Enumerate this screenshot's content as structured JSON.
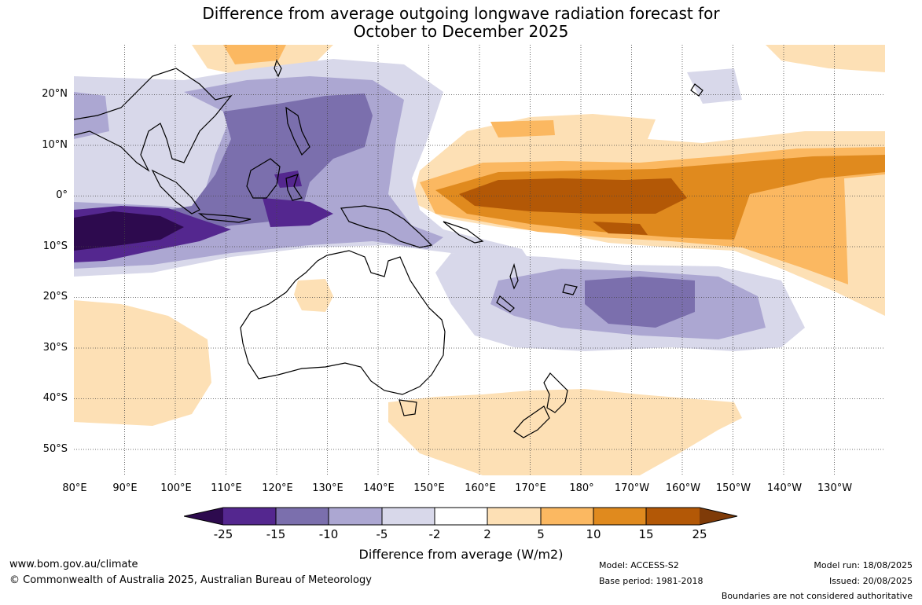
{
  "title": {
    "line1": "Difference from average outgoing longwave radiation forecast for",
    "line2": "October to December 2025"
  },
  "map": {
    "lat_labels": [
      "20°N",
      "10°N",
      "0°",
      "10°S",
      "20°S",
      "30°S",
      "40°S",
      "50°S"
    ],
    "lon_labels": [
      "80°E",
      "90°E",
      "100°E",
      "110°E",
      "120°E",
      "130°E",
      "140°E",
      "150°E",
      "160°E",
      "170°E",
      "180°",
      "170°W",
      "160°W",
      "150°W",
      "140°W",
      "130°W"
    ],
    "grid": true
  },
  "colorbar": {
    "tick_labels": [
      "-25",
      "-15",
      "-10",
      "-5",
      "-2",
      "2",
      "5",
      "10",
      "15",
      "25"
    ],
    "colors": [
      "#2d0a4e",
      "#54278f",
      "#7b6fad",
      "#aca7d2",
      "#d8d8ea",
      "#ffffff",
      "#fde0b5",
      "#fbb861",
      "#e08a1e",
      "#b35806",
      "#7f3b08"
    ],
    "title": "Difference from average (W/m2)"
  },
  "footer": {
    "url": "www.bom.gov.au/climate",
    "copyright": "© Commonwealth of Australia 2025, Australian Bureau of Meteorology",
    "model": "Model: ACCESS-S2",
    "base_period": "Base period: 1981-2018",
    "model_run": "Model run: 18/08/2025",
    "issued": "Issued: 20/08/2025",
    "disclaimer": "Boundaries are not considered authoritative"
  }
}
